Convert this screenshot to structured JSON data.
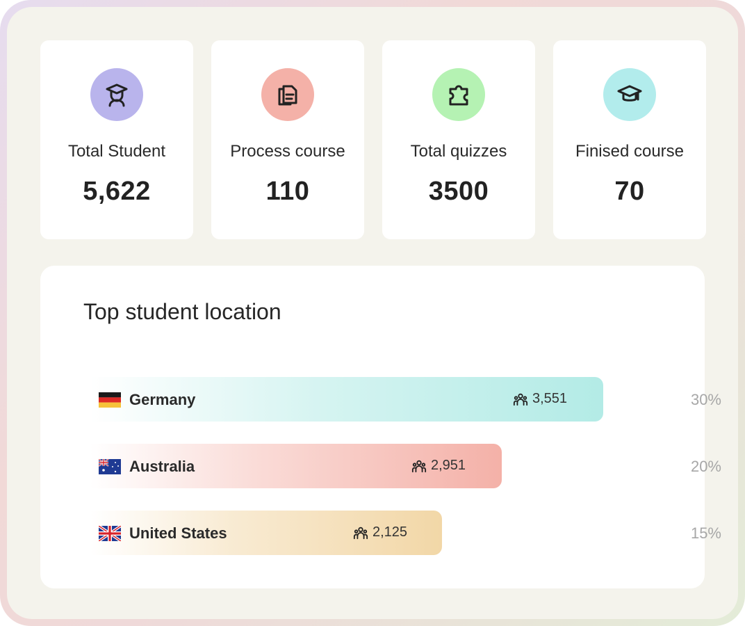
{
  "stats": [
    {
      "label": "Total Student",
      "value": "5,622",
      "icon": "student-icon",
      "icon_bg": "#b9b4ec"
    },
    {
      "label": "Process course",
      "value": "110",
      "icon": "document-icon",
      "icon_bg": "#f4b1a8"
    },
    {
      "label": "Total quizzes",
      "value": "3500",
      "icon": "puzzle-icon",
      "icon_bg": "#b5f2b3"
    },
    {
      "label": "Finised course",
      "value": "70",
      "icon": "graduation-cap-icon",
      "icon_bg": "#b2ecec"
    }
  ],
  "location": {
    "title": "Top student location",
    "rows": [
      {
        "country": "Germany",
        "flag": "germany-flag-icon",
        "count": "3,551",
        "percent": "30%",
        "share": 0.3,
        "bar_color": "#b3ebe6"
      },
      {
        "country": "Australia",
        "flag": "australia-flag-icon",
        "count": "2,951",
        "percent": "20%",
        "share": 0.2,
        "bar_color": "#f4b1a8"
      },
      {
        "country": "United States",
        "flag": "uk-flag-icon",
        "count": "2,125",
        "percent": "15%",
        "share": 0.15,
        "bar_color": "#f2d7a7"
      }
    ]
  }
}
